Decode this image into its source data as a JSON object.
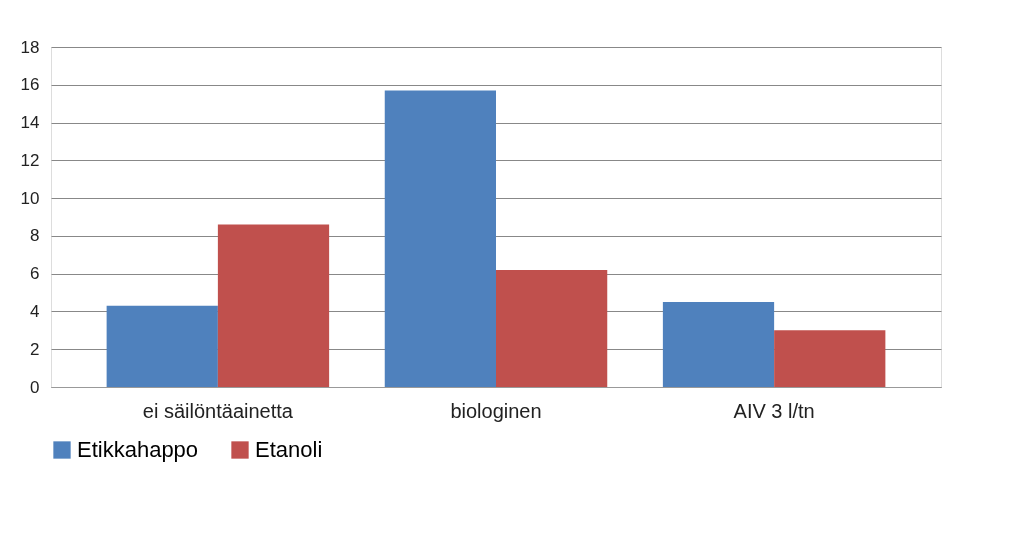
{
  "chart_data": {
    "type": "bar",
    "categories": [
      "ei säilöntäainetta",
      "biologinen",
      "AIV 3 l/tn"
    ],
    "series": [
      {
        "name": "Etikkahappo",
        "color": "#4f81bd",
        "values": [
          4.3,
          15.7,
          4.5
        ]
      },
      {
        "name": "Etanoli",
        "color": "#c0504d",
        "values": [
          8.6,
          6.2,
          3.0
        ]
      }
    ],
    "ylim": [
      0,
      18
    ],
    "yticks": [
      0,
      2,
      4,
      6,
      8,
      10,
      12,
      14,
      16,
      18
    ],
    "grid": "y",
    "legend": "bottom"
  }
}
